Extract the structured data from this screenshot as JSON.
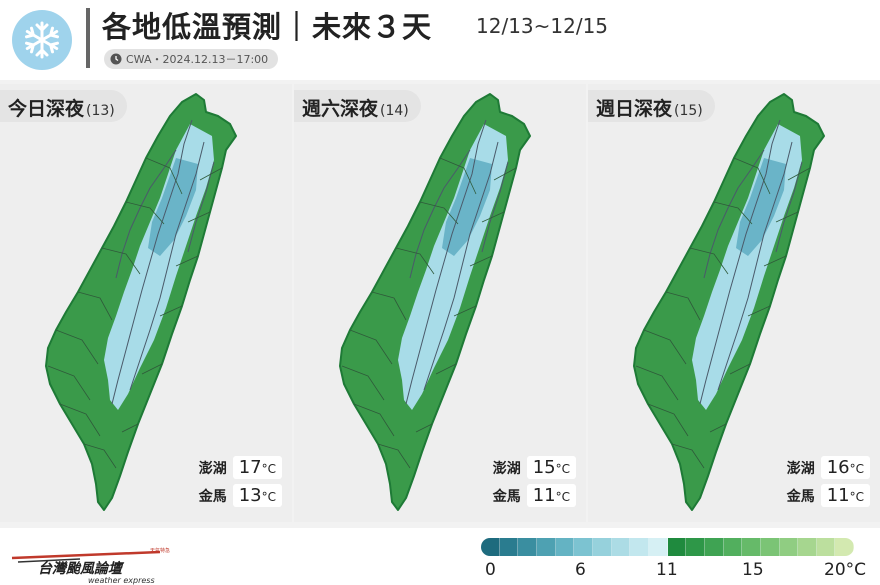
{
  "header": {
    "title": "各地低溫預測｜未來３天",
    "date_range": "12/13~12/15",
    "source": "CWA・2024.12.13－17:00",
    "icon": "snowflake-icon"
  },
  "panels": [
    {
      "day": "今日深夜",
      "num": "(13)",
      "islands": [
        {
          "name": "澎湖",
          "value": "17",
          "unit": "°C"
        },
        {
          "name": "金馬",
          "value": "13",
          "unit": "°C"
        }
      ]
    },
    {
      "day": "週六深夜",
      "num": "(14)",
      "islands": [
        {
          "name": "澎湖",
          "value": "15",
          "unit": "°C"
        },
        {
          "name": "金馬",
          "value": "11",
          "unit": "°C"
        }
      ]
    },
    {
      "day": "週日深夜",
      "num": "(15)",
      "islands": [
        {
          "name": "澎湖",
          "value": "16",
          "unit": "°C"
        },
        {
          "name": "金馬",
          "value": "11",
          "unit": "°C"
        }
      ]
    }
  ],
  "legend": {
    "ticks": [
      "0",
      "6",
      "11",
      "15",
      "20°C"
    ],
    "colors": [
      "#1e6b7e",
      "#2a7c8f",
      "#3a8ea0",
      "#4ea1b2",
      "#64b3c3",
      "#7cc3d1",
      "#96d1dc",
      "#acdce5",
      "#c2e7ee",
      "#d6f0f4",
      "#1f8a3e",
      "#2e9748",
      "#3fa353",
      "#52af5e",
      "#66ba69",
      "#7bc475",
      "#90cd82",
      "#a6d68f",
      "#bcdf9e",
      "#d3e9b0"
    ]
  },
  "footer": {
    "logo_text": "台灣颱風論壇",
    "logo_sub": "weather express",
    "logo_tag": "天氣特急"
  },
  "colors": {
    "green_dark": "#1e7a36",
    "green": "#3a9a4a",
    "cold": "#a8dce8",
    "cold_dark": "#6ab4c8"
  }
}
